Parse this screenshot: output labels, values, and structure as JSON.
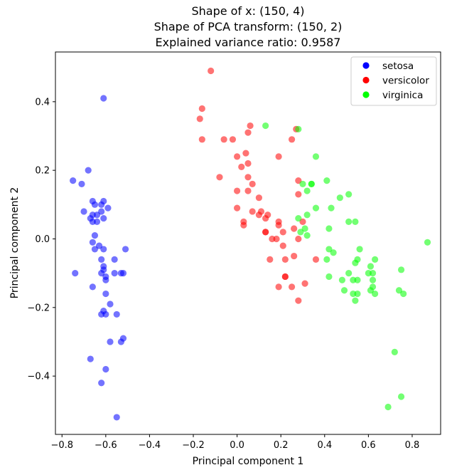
{
  "chart_data": {
    "type": "scatter",
    "title_lines": [
      "Shape of x: (150, 4)",
      "Shape of PCA transform: (150, 2)",
      "Explained variance ratio: 0.9587"
    ],
    "xlabel": "Principal component 1",
    "ylabel": "Principal component 2",
    "xlim": [
      -0.83,
      0.93
    ],
    "ylim": [
      -0.57,
      0.545
    ],
    "xticks": [
      -0.8,
      -0.6,
      -0.4,
      -0.2,
      0.0,
      0.2,
      0.4,
      0.6,
      0.8
    ],
    "yticks": [
      -0.4,
      -0.2,
      0.0,
      0.2,
      0.4
    ],
    "xtick_labels": [
      "−0.8",
      "−0.6",
      "−0.4",
      "−0.2",
      "0.0",
      "0.2",
      "0.4",
      "0.6",
      "0.8"
    ],
    "ytick_labels": [
      "−0.4",
      "−0.2",
      "0.0",
      "0.2",
      "0.4"
    ],
    "grid": false,
    "legend_position": "top-right",
    "series": [
      {
        "name": "setosa",
        "color": "#0000ff",
        "points": [
          [
            -0.61,
            0.41
          ],
          [
            -0.75,
            0.17
          ],
          [
            -0.71,
            0.16
          ],
          [
            -0.68,
            0.2
          ],
          [
            -0.66,
            0.11
          ],
          [
            -0.61,
            0.11
          ],
          [
            -0.7,
            0.08
          ],
          [
            -0.65,
            0.1
          ],
          [
            -0.62,
            0.1
          ],
          [
            -0.59,
            0.09
          ],
          [
            -0.67,
            0.06
          ],
          [
            -0.66,
            0.07
          ],
          [
            -0.64,
            0.07
          ],
          [
            -0.62,
            0.08
          ],
          [
            -0.61,
            0.06
          ],
          [
            -0.66,
            0.05
          ],
          [
            -0.64,
            0.05
          ],
          [
            -0.65,
            0.01
          ],
          [
            -0.66,
            -0.01
          ],
          [
            -0.63,
            -0.02
          ],
          [
            -0.65,
            -0.03
          ],
          [
            -0.61,
            -0.03
          ],
          [
            -0.51,
            -0.03
          ],
          [
            -0.62,
            -0.06
          ],
          [
            -0.56,
            -0.06
          ],
          [
            -0.61,
            -0.08
          ],
          [
            -0.61,
            -0.09
          ],
          [
            -0.74,
            -0.1
          ],
          [
            -0.62,
            -0.1
          ],
          [
            -0.52,
            -0.1
          ],
          [
            -0.56,
            -0.1
          ],
          [
            -0.53,
            -0.1
          ],
          [
            -0.6,
            -0.11
          ],
          [
            -0.66,
            -0.14
          ],
          [
            -0.6,
            -0.12
          ],
          [
            -0.6,
            -0.16
          ],
          [
            -0.58,
            -0.19
          ],
          [
            -0.61,
            -0.21
          ],
          [
            -0.62,
            -0.22
          ],
          [
            -0.6,
            -0.22
          ],
          [
            -0.55,
            -0.22
          ],
          [
            -0.58,
            -0.3
          ],
          [
            -0.53,
            -0.3
          ],
          [
            -0.52,
            -0.29
          ],
          [
            -0.67,
            -0.35
          ],
          [
            -0.6,
            -0.38
          ],
          [
            -0.62,
            -0.42
          ],
          [
            -0.55,
            -0.52
          ]
        ]
      },
      {
        "name": "versicolor",
        "color": "#ff0000",
        "points": [
          [
            -0.12,
            0.49
          ],
          [
            -0.16,
            0.38
          ],
          [
            -0.17,
            0.35
          ],
          [
            0.06,
            0.33
          ],
          [
            0.05,
            0.31
          ],
          [
            0.27,
            0.32
          ],
          [
            -0.16,
            0.29
          ],
          [
            -0.06,
            0.29
          ],
          [
            -0.02,
            0.29
          ],
          [
            0.25,
            0.29
          ],
          [
            0.04,
            0.25
          ],
          [
            0.0,
            0.24
          ],
          [
            0.19,
            0.24
          ],
          [
            0.05,
            0.22
          ],
          [
            0.02,
            0.21
          ],
          [
            -0.08,
            0.18
          ],
          [
            0.05,
            0.18
          ],
          [
            0.07,
            0.16
          ],
          [
            0.28,
            0.17
          ],
          [
            0.0,
            0.14
          ],
          [
            0.05,
            0.14
          ],
          [
            0.28,
            0.13
          ],
          [
            0.1,
            0.12
          ],
          [
            0.0,
            0.09
          ],
          [
            0.07,
            0.08
          ],
          [
            0.11,
            0.08
          ],
          [
            0.1,
            0.07
          ],
          [
            0.14,
            0.07
          ],
          [
            0.19,
            0.05
          ],
          [
            0.03,
            0.05
          ],
          [
            0.03,
            0.04
          ],
          [
            0.13,
            0.06
          ],
          [
            0.19,
            0.04
          ],
          [
            0.26,
            0.03
          ],
          [
            0.3,
            0.05
          ],
          [
            0.13,
            0.02
          ],
          [
            0.13,
            0.02
          ],
          [
            0.21,
            0.02
          ],
          [
            0.16,
            0.0
          ],
          [
            0.18,
            0.0
          ],
          [
            0.28,
            0.0
          ],
          [
            0.21,
            -0.02
          ],
          [
            0.26,
            -0.05
          ],
          [
            0.15,
            -0.06
          ],
          [
            0.22,
            -0.06
          ],
          [
            0.36,
            -0.06
          ],
          [
            0.22,
            -0.11
          ],
          [
            0.22,
            -0.11
          ],
          [
            0.31,
            -0.13
          ],
          [
            0.25,
            -0.14
          ],
          [
            0.19,
            -0.14
          ],
          [
            0.28,
            -0.18
          ]
        ]
      },
      {
        "name": "virginica",
        "color": "#00ff00",
        "points": [
          [
            0.13,
            0.33
          ],
          [
            0.28,
            0.32
          ],
          [
            0.36,
            0.24
          ],
          [
            0.3,
            0.16
          ],
          [
            0.34,
            0.16
          ],
          [
            0.34,
            0.16
          ],
          [
            0.32,
            0.14
          ],
          [
            0.41,
            0.17
          ],
          [
            0.47,
            0.12
          ],
          [
            0.51,
            0.13
          ],
          [
            0.36,
            0.09
          ],
          [
            0.43,
            0.09
          ],
          [
            0.32,
            0.07
          ],
          [
            0.28,
            0.06
          ],
          [
            0.51,
            0.05
          ],
          [
            0.54,
            0.05
          ],
          [
            0.31,
            0.03
          ],
          [
            0.42,
            0.03
          ],
          [
            0.29,
            0.02
          ],
          [
            0.32,
            0.01
          ],
          [
            0.87,
            -0.01
          ],
          [
            0.42,
            -0.03
          ],
          [
            0.44,
            -0.04
          ],
          [
            0.56,
            -0.03
          ],
          [
            0.41,
            -0.06
          ],
          [
            0.55,
            -0.06
          ],
          [
            0.54,
            -0.07
          ],
          [
            0.63,
            -0.06
          ],
          [
            0.61,
            -0.08
          ],
          [
            0.75,
            -0.09
          ],
          [
            0.62,
            -0.1
          ],
          [
            0.51,
            -0.1
          ],
          [
            0.42,
            -0.11
          ],
          [
            0.48,
            -0.12
          ],
          [
            0.6,
            -0.1
          ],
          [
            0.53,
            -0.12
          ],
          [
            0.55,
            -0.12
          ],
          [
            0.62,
            -0.12
          ],
          [
            0.49,
            -0.15
          ],
          [
            0.62,
            -0.14
          ],
          [
            0.61,
            -0.15
          ],
          [
            0.53,
            -0.16
          ],
          [
            0.55,
            -0.16
          ],
          [
            0.74,
            -0.15
          ],
          [
            0.63,
            -0.16
          ],
          [
            0.76,
            -0.16
          ],
          [
            0.54,
            -0.18
          ],
          [
            0.72,
            -0.33
          ],
          [
            0.75,
            -0.46
          ],
          [
            0.69,
            -0.49
          ]
        ]
      }
    ]
  }
}
